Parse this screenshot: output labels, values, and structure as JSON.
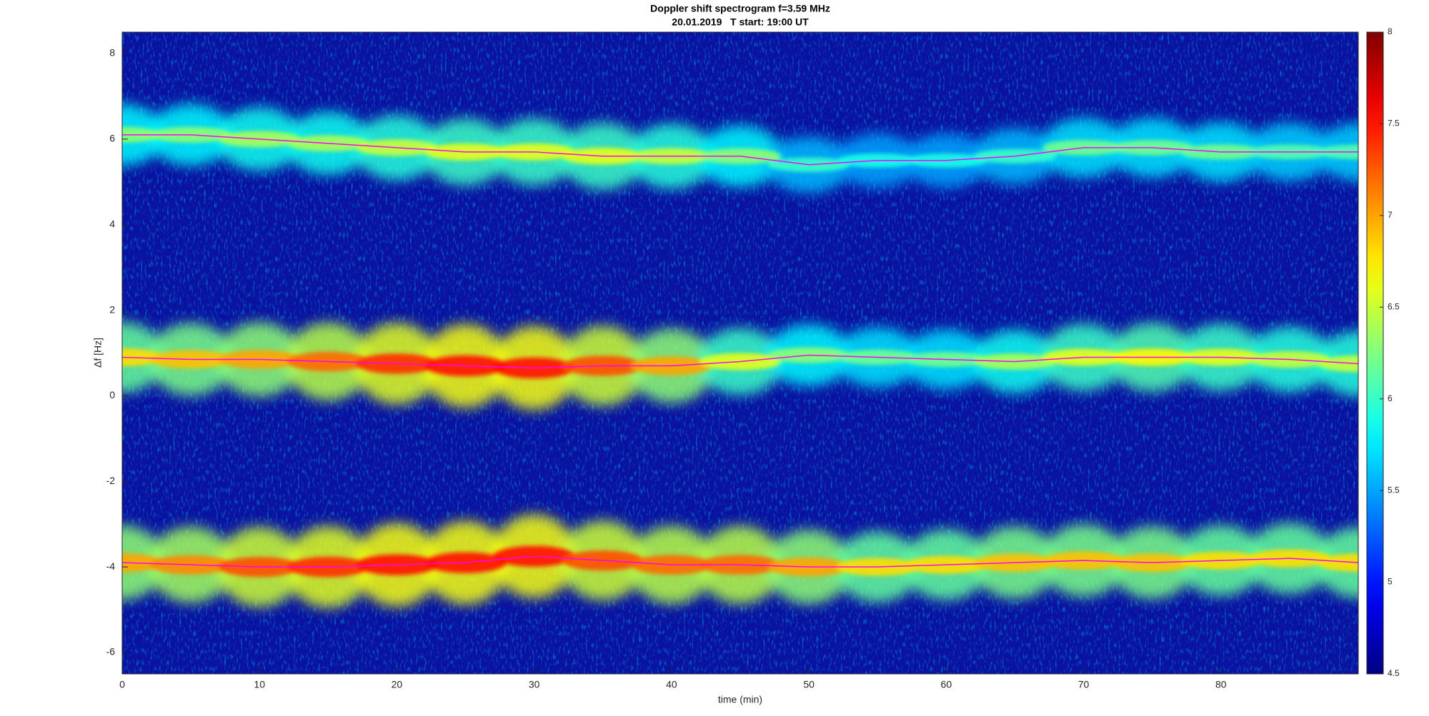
{
  "chart_data": {
    "type": "spectrogram",
    "title": "Doppler shift spectrogram f=3.59 MHz",
    "subtitle": "20.01.2019   T start: 19:00 UT",
    "xlabel": "time (min)",
    "ylabel": "Δf [Hz]",
    "xlim": [
      0,
      90
    ],
    "xticks": [
      0,
      10,
      20,
      30,
      40,
      50,
      60,
      70,
      80
    ],
    "ylim": [
      -6.5,
      8.5
    ],
    "yticks": [
      -6,
      -4,
      -2,
      0,
      2,
      4,
      6,
      8
    ],
    "clim": [
      4.5,
      8
    ],
    "cticks": [
      4.5,
      5,
      5.5,
      6,
      6.5,
      7,
      7.5,
      8
    ],
    "colormap": "jet",
    "x": [
      0,
      5,
      10,
      15,
      20,
      25,
      30,
      35,
      40,
      45,
      50,
      55,
      60,
      65,
      70,
      75,
      80,
      85,
      90
    ],
    "series": [
      {
        "color": "#ff00ff",
        "values": [
          6.1,
          6.1,
          6.0,
          5.9,
          5.8,
          5.7,
          5.7,
          5.6,
          5.6,
          5.6,
          5.4,
          5.5,
          5.5,
          5.6,
          5.8,
          5.8,
          5.7,
          5.7,
          5.7
        ],
        "intensity": [
          6.3,
          6.3,
          6.4,
          6.4,
          6.5,
          6.6,
          6.6,
          6.6,
          6.5,
          6.3,
          6.0,
          5.9,
          5.9,
          6.0,
          6.2,
          6.2,
          6.2,
          6.1,
          6.1
        ]
      },
      {
        "color": "#ff00ff",
        "values": [
          0.9,
          0.85,
          0.85,
          0.8,
          0.75,
          0.7,
          0.65,
          0.7,
          0.7,
          0.8,
          0.95,
          0.9,
          0.85,
          0.8,
          0.9,
          0.9,
          0.9,
          0.85,
          0.75
        ],
        "intensity": [
          6.8,
          6.9,
          7.0,
          7.2,
          7.4,
          7.5,
          7.5,
          7.3,
          7.0,
          6.6,
          6.3,
          6.2,
          6.2,
          6.4,
          6.6,
          6.7,
          6.6,
          6.5,
          6.5
        ]
      },
      {
        "color": "#ff00ff",
        "values": [
          -3.9,
          -3.95,
          -4.0,
          -4.0,
          -3.95,
          -3.9,
          -3.75,
          -3.85,
          -3.95,
          -3.95,
          -4.0,
          -4.0,
          -3.95,
          -3.9,
          -3.85,
          -3.9,
          -3.85,
          -3.8,
          -3.9
        ],
        "intensity": [
          7.0,
          7.1,
          7.3,
          7.4,
          7.5,
          7.5,
          7.5,
          7.3,
          7.2,
          7.2,
          7.0,
          6.8,
          6.8,
          6.9,
          6.9,
          6.9,
          6.8,
          6.8,
          6.8
        ]
      }
    ]
  }
}
